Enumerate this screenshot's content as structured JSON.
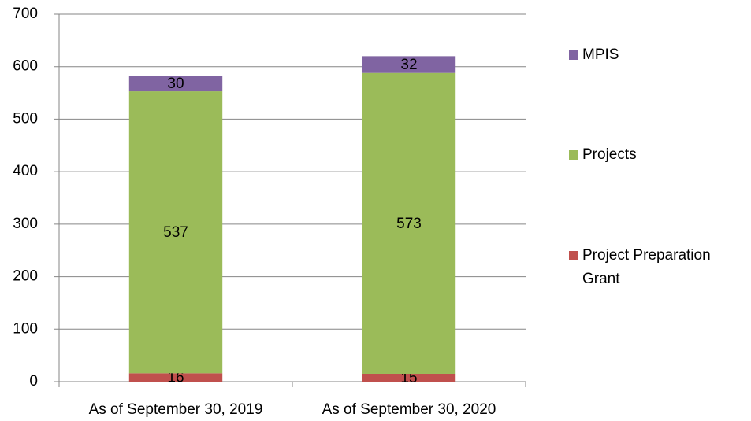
{
  "chart_data": {
    "type": "stacked_bar",
    "categories": [
      "As of September 30, 2019",
      "As of September 30, 2020"
    ],
    "series": [
      {
        "name": "Project Preparation Grant",
        "color": "#c0504d",
        "values": [
          16,
          15
        ]
      },
      {
        "name": "Projects",
        "color": "#9bbb59",
        "values": [
          537,
          573
        ]
      },
      {
        "name": "MPIS",
        "color": "#8064a2",
        "values": [
          30,
          32
        ]
      }
    ],
    "ylim": [
      0,
      700
    ],
    "yticks": [
      0,
      100,
      200,
      300,
      400,
      500,
      600,
      700
    ],
    "grid": true
  }
}
